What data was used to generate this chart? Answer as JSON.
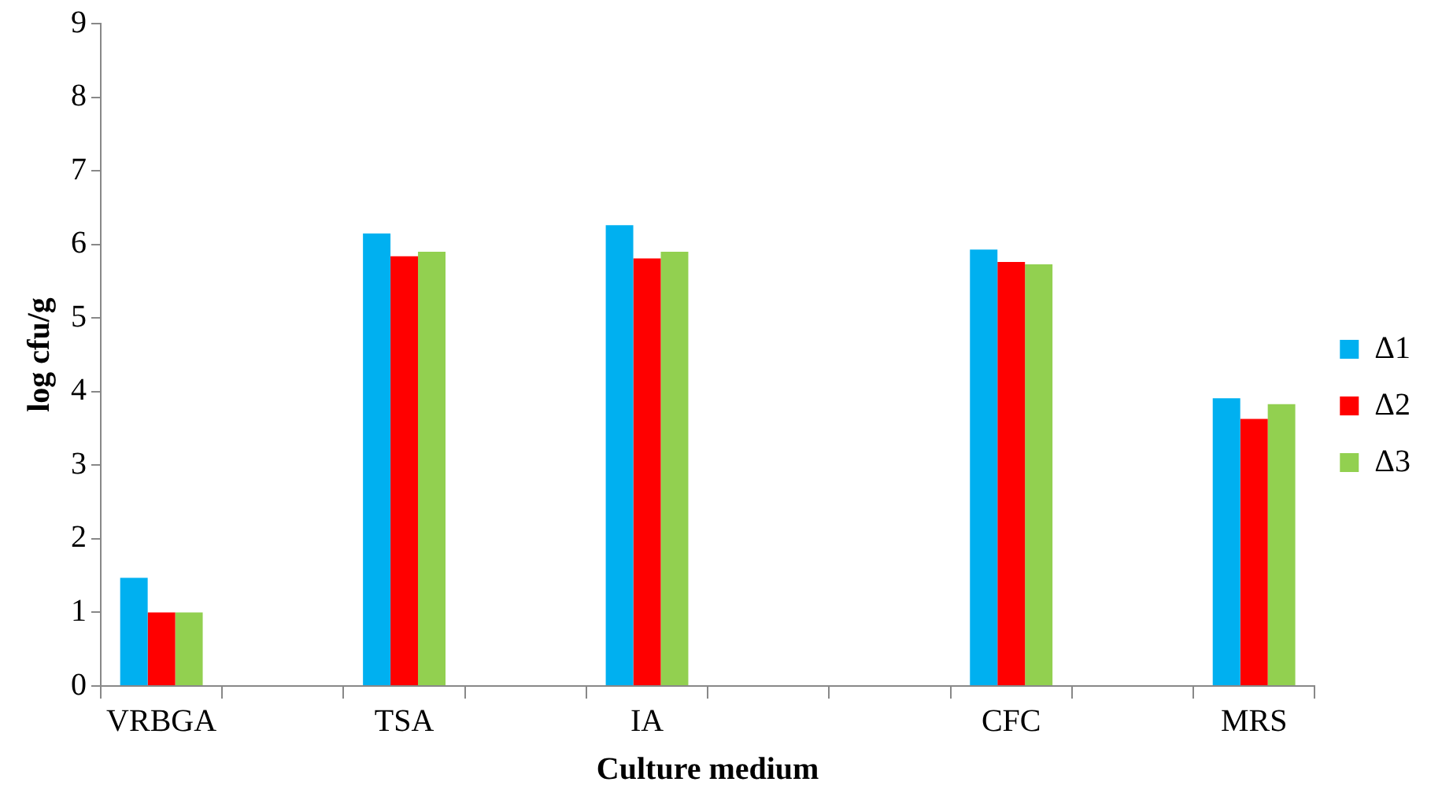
{
  "chart_data": {
    "type": "bar",
    "xlabel": "Culture medium",
    "ylabel": "log cfu/g",
    "categories": [
      "VRBGA",
      null,
      "TSA",
      null,
      "IA",
      null,
      null,
      "CFC",
      null,
      "MRS"
    ],
    "series": [
      {
        "name": "Δ1",
        "color": "#00b0f0",
        "values": [
          1.47,
          null,
          6.15,
          null,
          6.26,
          null,
          null,
          5.93,
          null,
          3.91
        ]
      },
      {
        "name": "Δ2",
        "color": "#ff0000",
        "values": [
          1.0,
          null,
          5.84,
          null,
          5.81,
          null,
          null,
          5.76,
          null,
          3.63
        ]
      },
      {
        "name": "Δ3",
        "color": "#92d050",
        "values": [
          1.0,
          null,
          5.9,
          null,
          5.9,
          null,
          null,
          5.73,
          null,
          3.83
        ]
      }
    ],
    "ylim": [
      0,
      9
    ],
    "yticks": [
      0,
      1,
      2,
      3,
      4,
      5,
      6,
      7,
      8,
      9
    ],
    "grid": false,
    "legend": "right"
  }
}
